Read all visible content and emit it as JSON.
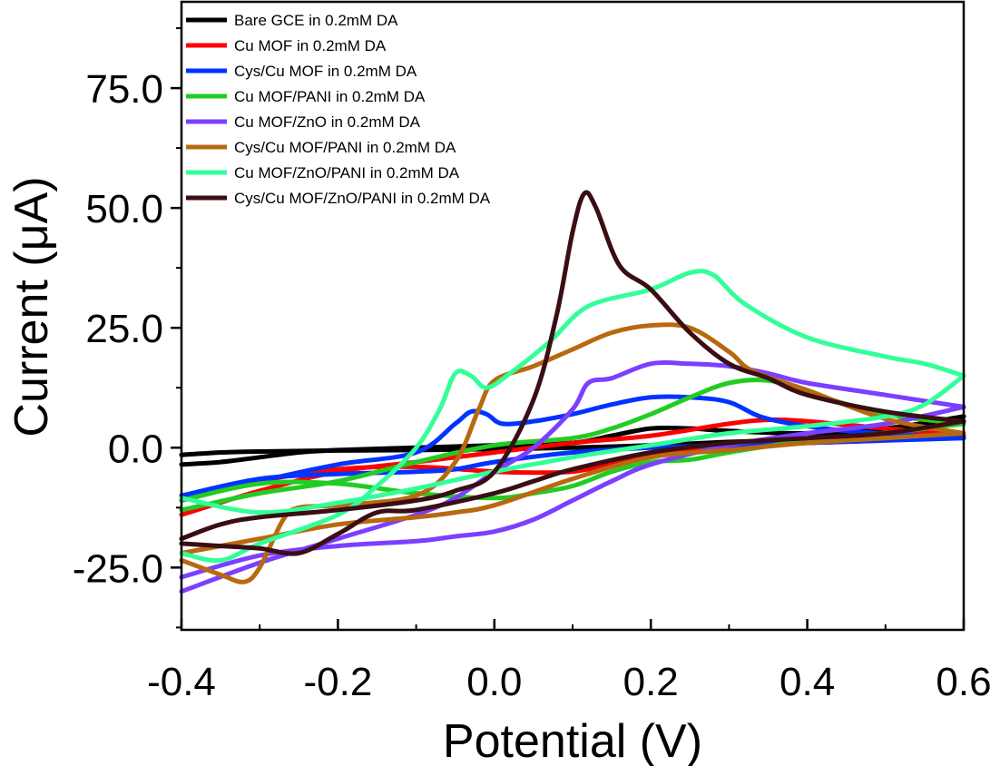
{
  "chart_data": {
    "type": "line",
    "title": "",
    "xlabel": "Potential (V)",
    "ylabel": "Current (μA)",
    "xlim": [
      -0.4,
      0.6
    ],
    "ylim": [
      -38,
      93
    ],
    "x_ticks": [
      {
        "value": -0.4,
        "label": "-0.4"
      },
      {
        "value": -0.2,
        "label": "-0.2"
      },
      {
        "value": 0.0,
        "label": "0.0"
      },
      {
        "value": 0.2,
        "label": "0.2"
      },
      {
        "value": 0.4,
        "label": "0.4"
      },
      {
        "value": 0.6,
        "label": "0.6"
      }
    ],
    "y_ticks": [
      {
        "value": -25,
        "label": "-25.0"
      },
      {
        "value": 0,
        "label": "0.0"
      },
      {
        "value": 25,
        "label": "25.0"
      },
      {
        "value": 50,
        "label": "50.0"
      },
      {
        "value": 75,
        "label": "75.0"
      }
    ],
    "grid": false,
    "legend_position": "top-left",
    "series": [
      {
        "name": "Bare GCE in 0.2mM DA",
        "color": "#000000",
        "anodic": [
          [
            -0.4,
            -3.5
          ],
          [
            -0.35,
            -3.0
          ],
          [
            -0.3,
            -2.0
          ],
          [
            -0.25,
            -1.0
          ],
          [
            -0.2,
            -0.5
          ],
          [
            -0.1,
            0
          ],
          [
            0,
            0.5
          ],
          [
            0.1,
            1.0
          ],
          [
            0.15,
            2.5
          ],
          [
            0.2,
            4.0
          ],
          [
            0.25,
            4.0
          ],
          [
            0.3,
            3.5
          ],
          [
            0.4,
            3.0
          ],
          [
            0.5,
            4.0
          ],
          [
            0.6,
            6.5
          ]
        ],
        "cathodic": [
          [
            0.6,
            6.5
          ],
          [
            0.5,
            3.0
          ],
          [
            0.4,
            1.8
          ],
          [
            0.3,
            1.2
          ],
          [
            0.2,
            0.5
          ],
          [
            0.1,
            0
          ],
          [
            0,
            -0.3
          ],
          [
            -0.1,
            -0.5
          ],
          [
            -0.2,
            -0.6
          ],
          [
            -0.3,
            -0.8
          ],
          [
            -0.35,
            -1.0
          ],
          [
            -0.4,
            -1.5
          ]
        ]
      },
      {
        "name": "Cu MOF in 0.2mM DA",
        "color": "#ff0000",
        "anodic": [
          [
            -0.4,
            -14.0
          ],
          [
            -0.3,
            -9.0
          ],
          [
            -0.2,
            -5.0
          ],
          [
            -0.1,
            -3.0
          ],
          [
            0,
            -1.0
          ],
          [
            0.1,
            1.0
          ],
          [
            0.2,
            2.5
          ],
          [
            0.3,
            5.0
          ],
          [
            0.35,
            5.8
          ],
          [
            0.4,
            5.5
          ],
          [
            0.5,
            4.0
          ],
          [
            0.6,
            2.5
          ]
        ],
        "cathodic": [
          [
            0.6,
            2.5
          ],
          [
            0.5,
            1.5
          ],
          [
            0.4,
            1.0
          ],
          [
            0.3,
            0
          ],
          [
            0.2,
            -1.5
          ],
          [
            0.15,
            -3.5
          ],
          [
            0.1,
            -5.0
          ],
          [
            0.05,
            -5.2
          ],
          [
            0,
            -5.0
          ],
          [
            -0.1,
            -4.0
          ],
          [
            -0.2,
            -4.5
          ],
          [
            -0.3,
            -7.0
          ],
          [
            -0.4,
            -11.0
          ]
        ]
      },
      {
        "name": "Cys/Cu MOF in 0.2mM DA",
        "color": "#0033ff",
        "anodic": [
          [
            -0.4,
            -11.0
          ],
          [
            -0.3,
            -7.0
          ],
          [
            -0.2,
            -3.5
          ],
          [
            -0.1,
            -1.0
          ],
          [
            -0.05,
            5.0
          ],
          [
            -0.03,
            7.5
          ],
          [
            -0.01,
            7.0
          ],
          [
            0.01,
            5.0
          ],
          [
            0.05,
            5.5
          ],
          [
            0.1,
            7.0
          ],
          [
            0.15,
            9.0
          ],
          [
            0.2,
            10.5
          ],
          [
            0.25,
            10.5
          ],
          [
            0.3,
            9.5
          ],
          [
            0.35,
            6.0
          ],
          [
            0.45,
            3.5
          ],
          [
            0.6,
            2.0
          ]
        ],
        "cathodic": [
          [
            0.6,
            2.0
          ],
          [
            0.5,
            1.5
          ],
          [
            0.4,
            1.0
          ],
          [
            0.3,
            0.5
          ],
          [
            0.2,
            0
          ],
          [
            0.1,
            -1.0
          ],
          [
            0,
            -3.0
          ],
          [
            -0.05,
            -4.5
          ],
          [
            -0.1,
            -5.0
          ],
          [
            -0.2,
            -5.5
          ],
          [
            -0.3,
            -6.5
          ],
          [
            -0.4,
            -10.0
          ]
        ]
      },
      {
        "name": "Cu MOF/PANI in 0.2mM DA",
        "color": "#22cc22",
        "anodic": [
          [
            -0.4,
            -13.0
          ],
          [
            -0.3,
            -9.5
          ],
          [
            -0.2,
            -7.0
          ],
          [
            -0.1,
            -3.0
          ],
          [
            0,
            0.5
          ],
          [
            0.1,
            2.0
          ],
          [
            0.15,
            4.0
          ],
          [
            0.2,
            7.0
          ],
          [
            0.25,
            10.5
          ],
          [
            0.3,
            13.5
          ],
          [
            0.35,
            14.0
          ],
          [
            0.4,
            11.5
          ],
          [
            0.5,
            7.0
          ],
          [
            0.6,
            5.0
          ]
        ],
        "cathodic": [
          [
            0.6,
            5.0
          ],
          [
            0.5,
            3.0
          ],
          [
            0.4,
            1.5
          ],
          [
            0.3,
            -1.0
          ],
          [
            0.25,
            -2.5
          ],
          [
            0.2,
            -3.0
          ],
          [
            0.15,
            -5.0
          ],
          [
            0.1,
            -8.0
          ],
          [
            0.05,
            -9.5
          ],
          [
            0,
            -10.5
          ],
          [
            -0.1,
            -9.5
          ],
          [
            -0.2,
            -7.5
          ],
          [
            -0.3,
            -7.5
          ],
          [
            -0.4,
            -11.0
          ]
        ]
      },
      {
        "name": "Cu MOF/ZnO in 0.2mM DA",
        "color": "#7b3fff",
        "anodic": [
          [
            -0.4,
            -30.0
          ],
          [
            -0.3,
            -24.0
          ],
          [
            -0.2,
            -19.0
          ],
          [
            -0.1,
            -14.0
          ],
          [
            -0.05,
            -10.5
          ],
          [
            0,
            -5.0
          ],
          [
            0.05,
            0
          ],
          [
            0.1,
            8.0
          ],
          [
            0.12,
            13.5
          ],
          [
            0.15,
            14.5
          ],
          [
            0.2,
            17.5
          ],
          [
            0.25,
            17.5
          ],
          [
            0.3,
            17.0
          ],
          [
            0.35,
            15.5
          ],
          [
            0.4,
            13.5
          ],
          [
            0.5,
            11.0
          ],
          [
            0.6,
            8.5
          ]
        ],
        "cathodic": [
          [
            0.6,
            8.5
          ],
          [
            0.5,
            5.0
          ],
          [
            0.4,
            3.0
          ],
          [
            0.3,
            0.5
          ],
          [
            0.2,
            -3.5
          ],
          [
            0.15,
            -7.0
          ],
          [
            0.1,
            -11.0
          ],
          [
            0.05,
            -15.0
          ],
          [
            0,
            -17.5
          ],
          [
            -0.05,
            -18.5
          ],
          [
            -0.1,
            -19.5
          ],
          [
            -0.2,
            -20.5
          ],
          [
            -0.3,
            -22.5
          ],
          [
            -0.4,
            -27.0
          ]
        ]
      },
      {
        "name": "Cys/Cu MOF/PANI in 0.2mM DA",
        "color": "#b8690f",
        "anodic": [
          [
            -0.4,
            -23.5
          ],
          [
            -0.35,
            -26.5
          ],
          [
            -0.32,
            -28.0
          ],
          [
            -0.3,
            -25.0
          ],
          [
            -0.27,
            -15.0
          ],
          [
            -0.25,
            -12.5
          ],
          [
            -0.2,
            -12.0
          ],
          [
            -0.1,
            -10.0
          ],
          [
            -0.05,
            -3.0
          ],
          [
            -0.02,
            8.0
          ],
          [
            0,
            14.0
          ],
          [
            0.05,
            17.0
          ],
          [
            0.1,
            20.5
          ],
          [
            0.15,
            24.0
          ],
          [
            0.2,
            25.5
          ],
          [
            0.25,
            25.0
          ],
          [
            0.3,
            20.0
          ],
          [
            0.33,
            16.0
          ],
          [
            0.4,
            12.0
          ],
          [
            0.5,
            6.0
          ],
          [
            0.6,
            3.0
          ]
        ],
        "cathodic": [
          [
            0.6,
            3.0
          ],
          [
            0.5,
            2.0
          ],
          [
            0.4,
            1.0
          ],
          [
            0.3,
            -0.5
          ],
          [
            0.2,
            -2.0
          ],
          [
            0.1,
            -6.5
          ],
          [
            0,
            -12.0
          ],
          [
            -0.05,
            -13.5
          ],
          [
            -0.1,
            -14.5
          ],
          [
            -0.2,
            -16.0
          ],
          [
            -0.3,
            -19.0
          ],
          [
            -0.4,
            -22.0
          ]
        ]
      },
      {
        "name": "Cu MOF/ZnO/PANI in 0.2mM DA",
        "color": "#33ff99",
        "anodic": [
          [
            -0.4,
            -22.0
          ],
          [
            -0.35,
            -23.5
          ],
          [
            -0.3,
            -20.0
          ],
          [
            -0.2,
            -14.0
          ],
          [
            -0.15,
            -8.0
          ],
          [
            -0.1,
            0
          ],
          [
            -0.07,
            8.0
          ],
          [
            -0.05,
            15.5
          ],
          [
            -0.03,
            15.0
          ],
          [
            -0.01,
            12.5
          ],
          [
            0.02,
            15.5
          ],
          [
            0.07,
            22.0
          ],
          [
            0.12,
            29.5
          ],
          [
            0.2,
            33.0
          ],
          [
            0.25,
            36.5
          ],
          [
            0.28,
            36.0
          ],
          [
            0.32,
            30.0
          ],
          [
            0.4,
            23.0
          ],
          [
            0.5,
            19.0
          ],
          [
            0.55,
            17.5
          ],
          [
            0.6,
            15.0
          ]
        ],
        "cathodic": [
          [
            0.6,
            15.0
          ],
          [
            0.55,
            9.0
          ],
          [
            0.5,
            6.5
          ],
          [
            0.4,
            4.5
          ],
          [
            0.3,
            3.0
          ],
          [
            0.2,
            0.5
          ],
          [
            0.1,
            -2.0
          ],
          [
            0,
            -5.0
          ],
          [
            -0.1,
            -8.5
          ],
          [
            -0.2,
            -11.5
          ],
          [
            -0.3,
            -13.5
          ],
          [
            -0.4,
            -10.5
          ]
        ]
      },
      {
        "name": "Cys/Cu MOF/ZnO/PANI in 0.2mM DA",
        "color": "#3a0e14",
        "anodic": [
          [
            -0.4,
            -19.0
          ],
          [
            -0.35,
            -16.0
          ],
          [
            -0.3,
            -14.5
          ],
          [
            -0.2,
            -13.0
          ],
          [
            -0.1,
            -11.0
          ],
          [
            -0.05,
            -9.0
          ],
          [
            0,
            -5.0
          ],
          [
            0.05,
            10.0
          ],
          [
            0.08,
            28.0
          ],
          [
            0.1,
            45.0
          ],
          [
            0.115,
            53.0
          ],
          [
            0.13,
            50.0
          ],
          [
            0.16,
            38.0
          ],
          [
            0.2,
            33.0
          ],
          [
            0.25,
            24.0
          ],
          [
            0.3,
            17.5
          ],
          [
            0.35,
            14.5
          ],
          [
            0.4,
            11.0
          ],
          [
            0.5,
            7.5
          ],
          [
            0.6,
            5.5
          ]
        ],
        "cathodic": [
          [
            0.6,
            5.5
          ],
          [
            0.5,
            3.0
          ],
          [
            0.4,
            2.0
          ],
          [
            0.3,
            1.0
          ],
          [
            0.2,
            -1.0
          ],
          [
            0.1,
            -4.5
          ],
          [
            0.05,
            -7.0
          ],
          [
            0,
            -9.5
          ],
          [
            -0.1,
            -13.0
          ],
          [
            -0.15,
            -13.5
          ],
          [
            -0.2,
            -18.0
          ],
          [
            -0.25,
            -22.0
          ],
          [
            -0.3,
            -21.0
          ],
          [
            -0.35,
            -20.5
          ],
          [
            -0.4,
            -20.0
          ]
        ]
      }
    ]
  }
}
